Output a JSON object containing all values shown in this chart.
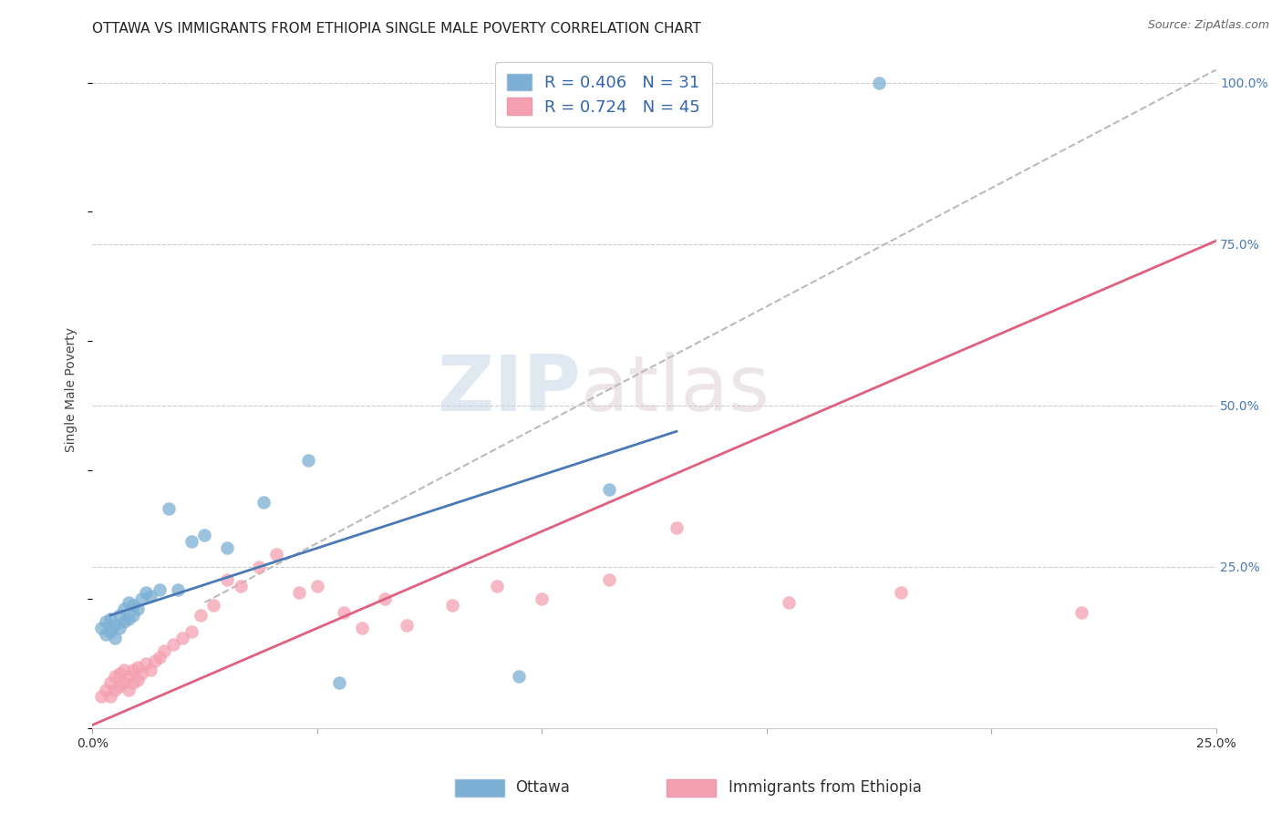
{
  "title": "OTTAWA VS IMMIGRANTS FROM ETHIOPIA SINGLE MALE POVERTY CORRELATION CHART",
  "source": "Source: ZipAtlas.com",
  "ylabel": "Single Male Poverty",
  "xlim": [
    0.0,
    0.25
  ],
  "ylim": [
    0.0,
    1.05
  ],
  "ottawa_color": "#7bafd4",
  "ethiopia_color": "#f4a0b0",
  "ottawa_line_color": "#4a7ab5",
  "ethiopia_line_color": "#e06080",
  "diagonal_line_color": "#bbbbbb",
  "R_ottawa": 0.406,
  "N_ottawa": 31,
  "R_ethiopia": 0.724,
  "N_ethiopia": 45,
  "legend_label_ottawa": "Ottawa",
  "legend_label_ethiopia": "Immigrants from Ethiopia",
  "watermark_zip": "ZIP",
  "watermark_atlas": "atlas",
  "background_color": "#ffffff",
  "ottawa_x": [
    0.002,
    0.003,
    0.003,
    0.004,
    0.004,
    0.005,
    0.005,
    0.006,
    0.006,
    0.007,
    0.007,
    0.008,
    0.008,
    0.009,
    0.009,
    0.01,
    0.011,
    0.012,
    0.013,
    0.015,
    0.017,
    0.019,
    0.022,
    0.025,
    0.03,
    0.038,
    0.048,
    0.055,
    0.095,
    0.115,
    0.175
  ],
  "ottawa_y": [
    0.155,
    0.145,
    0.165,
    0.15,
    0.17,
    0.14,
    0.16,
    0.155,
    0.175,
    0.165,
    0.185,
    0.17,
    0.195,
    0.175,
    0.19,
    0.185,
    0.2,
    0.21,
    0.205,
    0.215,
    0.34,
    0.215,
    0.29,
    0.3,
    0.28,
    0.35,
    0.415,
    0.07,
    0.08,
    0.37,
    1.0
  ],
  "ethiopia_x": [
    0.002,
    0.003,
    0.004,
    0.004,
    0.005,
    0.005,
    0.006,
    0.006,
    0.007,
    0.007,
    0.008,
    0.008,
    0.009,
    0.009,
    0.01,
    0.01,
    0.011,
    0.012,
    0.013,
    0.014,
    0.015,
    0.016,
    0.018,
    0.02,
    0.022,
    0.024,
    0.027,
    0.03,
    0.033,
    0.037,
    0.041,
    0.046,
    0.05,
    0.056,
    0.06,
    0.065,
    0.07,
    0.08,
    0.09,
    0.1,
    0.115,
    0.13,
    0.155,
    0.18,
    0.22
  ],
  "ethiopia_y": [
    0.05,
    0.06,
    0.05,
    0.07,
    0.06,
    0.08,
    0.065,
    0.085,
    0.07,
    0.09,
    0.06,
    0.08,
    0.07,
    0.09,
    0.075,
    0.095,
    0.085,
    0.1,
    0.09,
    0.105,
    0.11,
    0.12,
    0.13,
    0.14,
    0.15,
    0.175,
    0.19,
    0.23,
    0.22,
    0.25,
    0.27,
    0.21,
    0.22,
    0.18,
    0.155,
    0.2,
    0.16,
    0.19,
    0.22,
    0.2,
    0.23,
    0.31,
    0.195,
    0.21,
    0.18
  ],
  "ottawa_line_x": [
    0.004,
    0.13
  ],
  "ottawa_line_y": [
    0.175,
    0.46
  ],
  "ethiopia_line_x": [
    0.0,
    0.25
  ],
  "ethiopia_line_y": [
    0.005,
    0.755
  ],
  "diag_line_x": [
    0.025,
    0.25
  ],
  "diag_line_y": [
    0.195,
    1.02
  ],
  "title_fontsize": 11,
  "axis_label_fontsize": 10,
  "tick_fontsize": 10,
  "legend_fontsize": 13,
  "source_fontsize": 9
}
